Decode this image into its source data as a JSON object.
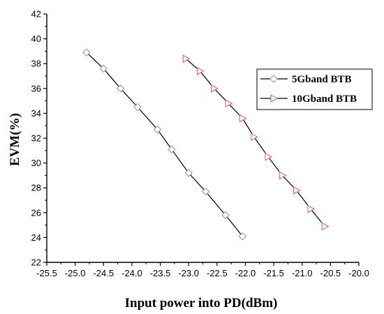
{
  "chart_data": {
    "type": "line",
    "xlabel": "Input power into PD(dBm)",
    "ylabel": "EVM(%)",
    "xlim": [
      -25.5,
      -20.0
    ],
    "ylim": [
      22,
      42
    ],
    "xticks": [
      "-25.5",
      "-25.0",
      "-24.5",
      "-24.0",
      "-23.5",
      "-23.0",
      "-22.5",
      "-22.0",
      "-21.5",
      "-21.0",
      "-20.5",
      "-20.0"
    ],
    "xtick_values": [
      -25.5,
      -25.0,
      -24.5,
      -24.0,
      -23.5,
      -23.0,
      -22.5,
      -22.0,
      -21.5,
      -21.0,
      -20.5,
      -20.0
    ],
    "yticks": [
      "22",
      "24",
      "26",
      "28",
      "30",
      "32",
      "34",
      "36",
      "38",
      "40",
      "42"
    ],
    "ytick_values": [
      22,
      24,
      26,
      28,
      30,
      32,
      34,
      36,
      38,
      40,
      42
    ],
    "legend_position": "upper-right",
    "series": [
      {
        "name": "5Gband BTB",
        "marker": "diamond",
        "color": "#9a9ad6",
        "x": [
          -24.8,
          -24.5,
          -24.2,
          -23.9,
          -23.55,
          -23.3,
          -23.0,
          -22.7,
          -22.35,
          -22.05
        ],
        "y": [
          38.9,
          37.6,
          36.0,
          34.5,
          32.7,
          31.1,
          29.2,
          27.7,
          25.8,
          24.1
        ]
      },
      {
        "name": "10Gband BTB",
        "marker": "triangle-right",
        "color": "#e07070",
        "x": [
          -23.05,
          -22.8,
          -22.55,
          -22.3,
          -22.05,
          -21.85,
          -21.6,
          -21.35,
          -21.1,
          -20.85,
          -20.6
        ],
        "y": [
          38.4,
          37.4,
          36.0,
          34.8,
          33.6,
          32.1,
          30.5,
          29.0,
          27.8,
          26.3,
          24.9
        ]
      }
    ],
    "line_color": "#000000"
  }
}
